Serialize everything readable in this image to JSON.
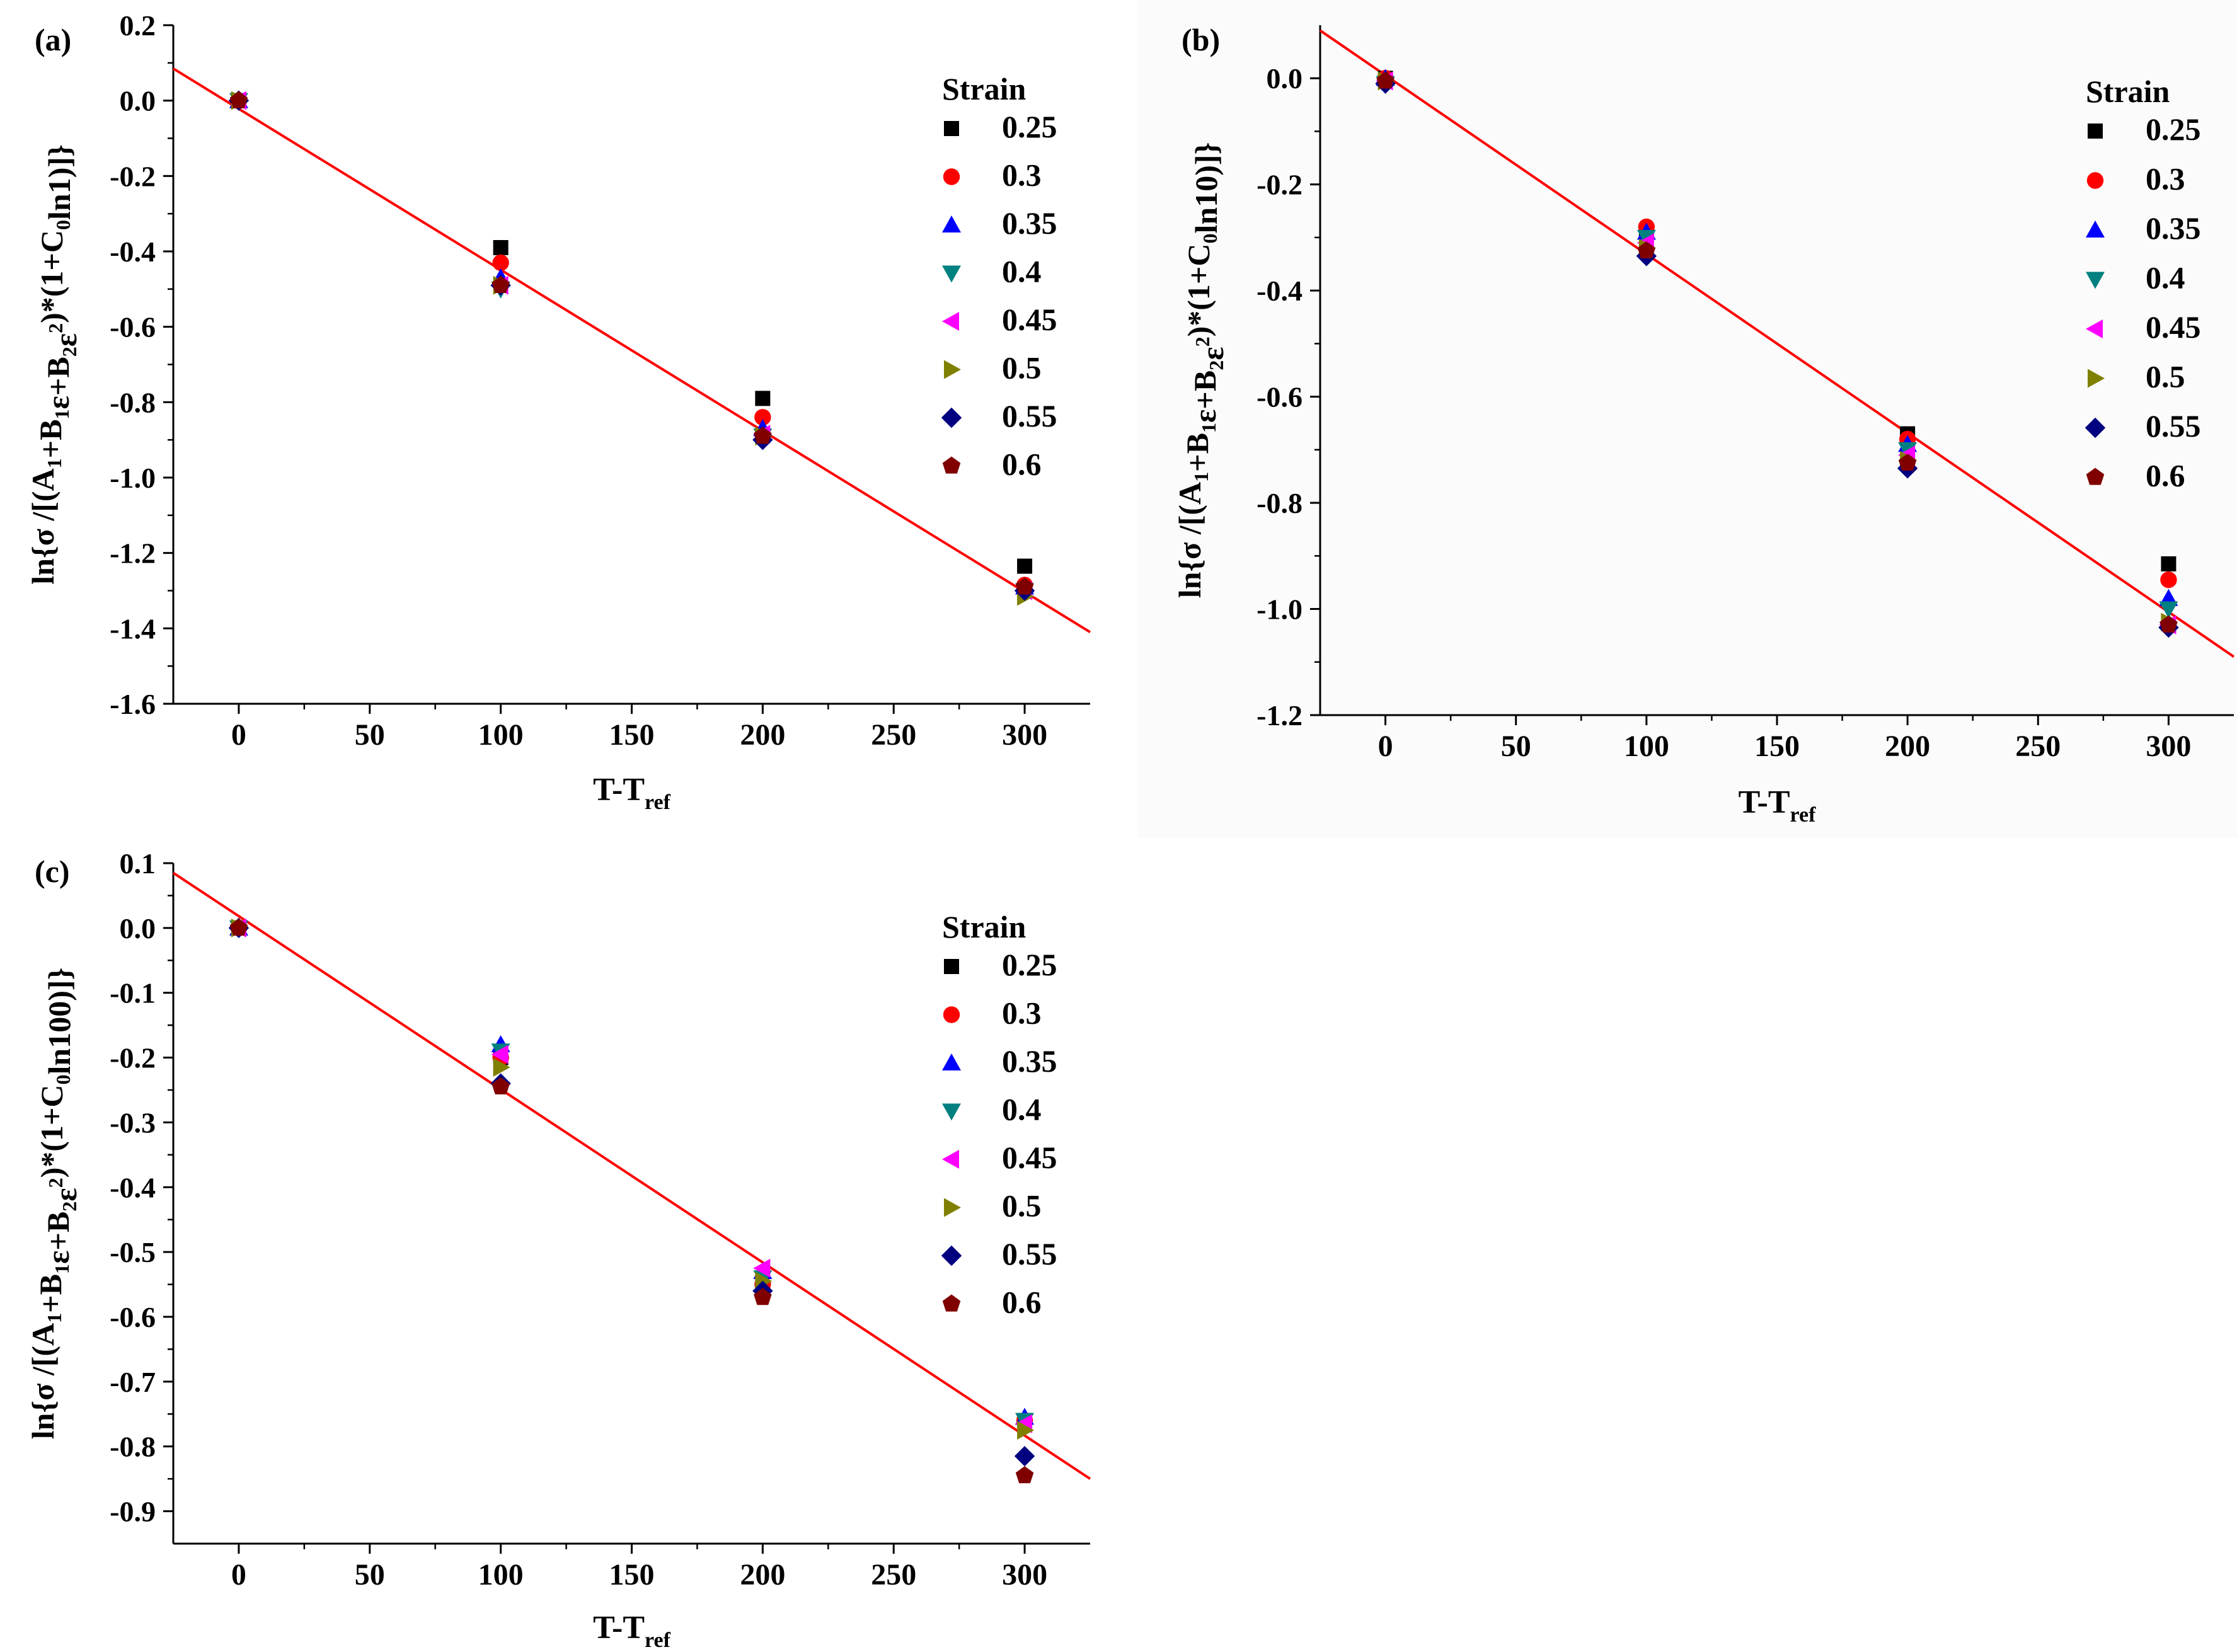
{
  "chart_data": [
    {
      "type": "scatter",
      "panel_label": "(a)",
      "ylabel": "ln{σ /[(A1+B1ε+B2ε2)*(1+C0ln1)]}",
      "xlabel": "T-Tref",
      "xlim": [
        -25,
        325
      ],
      "ylim": [
        -1.6,
        0.2
      ],
      "xticks": [
        0,
        50,
        100,
        150,
        200,
        250,
        300
      ],
      "yticks": [
        0.2,
        0.0,
        -0.2,
        -0.4,
        -0.6,
        -0.8,
        -1.0,
        -1.2,
        -1.4,
        -1.6
      ],
      "ytick_labels": [
        "0.2",
        "0.0",
        "-0.2",
        "-0.4",
        "-0.6",
        "-0.8",
        "-1.0",
        "-1.2",
        "-1.4",
        "-1.6"
      ],
      "legend_title": "Strain",
      "x": [
        0,
        100,
        200,
        300
      ],
      "series": [
        {
          "name": "0.25",
          "values": [
            0.0,
            -0.39,
            -0.79,
            -1.235
          ]
        },
        {
          "name": "0.3",
          "values": [
            0.0,
            -0.43,
            -0.84,
            -1.285
          ]
        },
        {
          "name": "0.35",
          "values": [
            0.0,
            -0.47,
            -0.87,
            -1.29
          ]
        },
        {
          "name": "0.4",
          "values": [
            0.0,
            -0.5,
            -0.89,
            -1.3
          ]
        },
        {
          "name": "0.45",
          "values": [
            0.0,
            -0.49,
            -0.885,
            -1.3
          ]
        },
        {
          "name": "0.5",
          "values": [
            0.0,
            -0.49,
            -0.89,
            -1.315
          ]
        },
        {
          "name": "0.55",
          "values": [
            0.0,
            -0.49,
            -0.9,
            -1.3
          ]
        },
        {
          "name": "0.6",
          "values": [
            0.0,
            -0.49,
            -0.89,
            -1.29
          ]
        }
      ],
      "fit_line": {
        "x": [
          -25,
          325
        ],
        "y": [
          0.085,
          -1.41
        ]
      }
    },
    {
      "type": "scatter",
      "panel_label": "(b)",
      "ylabel": "ln{σ /[(A1+B1ε+B2ε2)*(1+C0ln10)]}",
      "xlabel": "T-Tref",
      "xlim": [
        -25,
        325
      ],
      "ylim": [
        -1.2,
        0.1
      ],
      "xticks": [
        0,
        50,
        100,
        150,
        200,
        250,
        300
      ],
      "yticks": [
        0.0,
        -0.2,
        -0.4,
        -0.6,
        -0.8,
        -1.0,
        -1.2
      ],
      "ytick_labels": [
        "0.0",
        "-0.2",
        "-0.4",
        "-0.6",
        "-0.8",
        "-1.0",
        "-1.2"
      ],
      "legend_title": "Strain",
      "x": [
        0,
        100,
        200,
        300
      ],
      "series": [
        {
          "name": "0.25",
          "values": [
            0.0,
            -0.29,
            -0.67,
            -0.915
          ]
        },
        {
          "name": "0.3",
          "values": [
            0.0,
            -0.28,
            -0.68,
            -0.945
          ]
        },
        {
          "name": "0.35",
          "values": [
            0.0,
            -0.29,
            -0.69,
            -0.98
          ]
        },
        {
          "name": "0.4",
          "values": [
            -0.01,
            -0.3,
            -0.7,
            -1.0
          ]
        },
        {
          "name": "0.45",
          "values": [
            -0.005,
            -0.31,
            -0.71,
            -1.03
          ]
        },
        {
          "name": "0.5",
          "values": [
            -0.005,
            -0.32,
            -0.72,
            -1.025
          ]
        },
        {
          "name": "0.55",
          "values": [
            -0.01,
            -0.335,
            -0.735,
            -1.035
          ]
        },
        {
          "name": "0.6",
          "values": [
            -0.005,
            -0.325,
            -0.725,
            -1.03
          ]
        }
      ],
      "fit_line": {
        "x": [
          -25,
          325
        ],
        "y": [
          0.09,
          -1.09
        ]
      }
    },
    {
      "type": "scatter",
      "panel_label": "(c)",
      "ylabel": "ln{σ /[(A1+B1ε+B2ε2)*(1+C0ln100)]}",
      "xlabel": "T-Tref",
      "xlim": [
        -25,
        325
      ],
      "ylim": [
        -0.95,
        0.1
      ],
      "xticks": [
        0,
        50,
        100,
        150,
        200,
        250,
        300
      ],
      "yticks": [
        0.1,
        0.0,
        -0.1,
        -0.2,
        -0.3,
        -0.4,
        -0.5,
        -0.6,
        -0.7,
        -0.8,
        -0.9
      ],
      "ytick_labels": [
        "0.1",
        "0.0",
        "-0.1",
        "-0.2",
        "-0.3",
        "-0.4",
        "-0.5",
        "-0.6",
        "-0.7",
        "-0.8",
        "-0.9"
      ],
      "legend_title": "Strain",
      "x": [
        0,
        100,
        200,
        300
      ],
      "series": [
        {
          "name": "0.25",
          "values": [
            0.0,
            -0.2,
            -0.56,
            -0.76
          ]
        },
        {
          "name": "0.3",
          "values": [
            0.0,
            -0.2,
            -0.55,
            -0.76
          ]
        },
        {
          "name": "0.35",
          "values": [
            0.0,
            -0.18,
            -0.53,
            -0.755
          ]
        },
        {
          "name": "0.4",
          "values": [
            0.0,
            -0.19,
            -0.54,
            -0.76
          ]
        },
        {
          "name": "0.45",
          "values": [
            0.0,
            -0.195,
            -0.525,
            -0.765
          ]
        },
        {
          "name": "0.5",
          "values": [
            0.0,
            -0.215,
            -0.545,
            -0.775
          ]
        },
        {
          "name": "0.55",
          "values": [
            0.0,
            -0.24,
            -0.56,
            -0.815
          ]
        },
        {
          "name": "0.6",
          "values": [
            0.0,
            -0.245,
            -0.57,
            -0.845
          ]
        }
      ],
      "fit_line": {
        "x": [
          -25,
          325
        ],
        "y": [
          0.085,
          -0.85
        ]
      }
    }
  ],
  "markers": [
    {
      "series": "0.25",
      "shape": "square",
      "color": "#000000"
    },
    {
      "series": "0.3",
      "shape": "circle",
      "color": "#ff0000"
    },
    {
      "series": "0.35",
      "shape": "triangle-up",
      "color": "#0000ff"
    },
    {
      "series": "0.4",
      "shape": "triangle-down",
      "color": "#008080"
    },
    {
      "series": "0.45",
      "shape": "triangle-left",
      "color": "#ff00ff"
    },
    {
      "series": "0.5",
      "shape": "triangle-right",
      "color": "#808000"
    },
    {
      "series": "0.55",
      "shape": "diamond",
      "color": "#000080"
    },
    {
      "series": "0.6",
      "shape": "pentagon",
      "color": "#800000"
    }
  ],
  "fit_line_color": "#ff0000"
}
